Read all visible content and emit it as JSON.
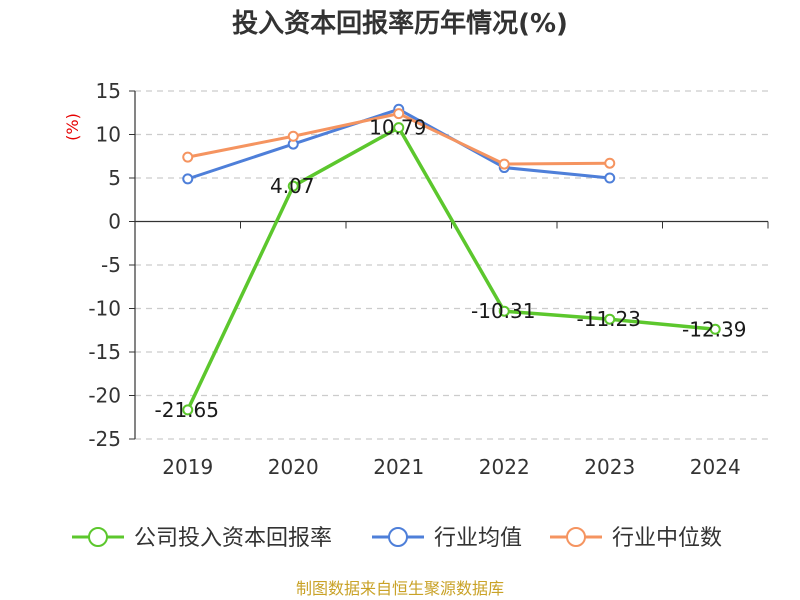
{
  "chart_data": {
    "type": "line",
    "title": "投入资本回报率历年情况(%)",
    "ylabel": "(%)",
    "categories": [
      "2019",
      "2020",
      "2021",
      "2022",
      "2023",
      "2024"
    ],
    "ylim": [
      -25,
      15
    ],
    "yticks": [
      15,
      10,
      5,
      0,
      -5,
      -10,
      -15,
      -20,
      -25
    ],
    "grid": true,
    "legend_position": "bottom",
    "series": [
      {
        "name": "公司投入资本回报率",
        "color": "#5cc72d",
        "values": [
          -21.65,
          4.07,
          10.79,
          -10.31,
          -11.23,
          -12.39
        ],
        "labels": [
          "-21.65",
          "4.07",
          "10.79",
          "-10.31",
          "-11.23",
          "-12.39"
        ]
      },
      {
        "name": "行业均值",
        "color": "#4e7fd9",
        "values": [
          4.9,
          8.9,
          12.9,
          6.2,
          5.0,
          null
        ]
      },
      {
        "name": "行业中位数",
        "color": "#f59460",
        "values": [
          7.4,
          9.8,
          12.4,
          6.6,
          6.7,
          null
        ]
      }
    ]
  },
  "source": "制图数据来自恒生聚源数据库"
}
